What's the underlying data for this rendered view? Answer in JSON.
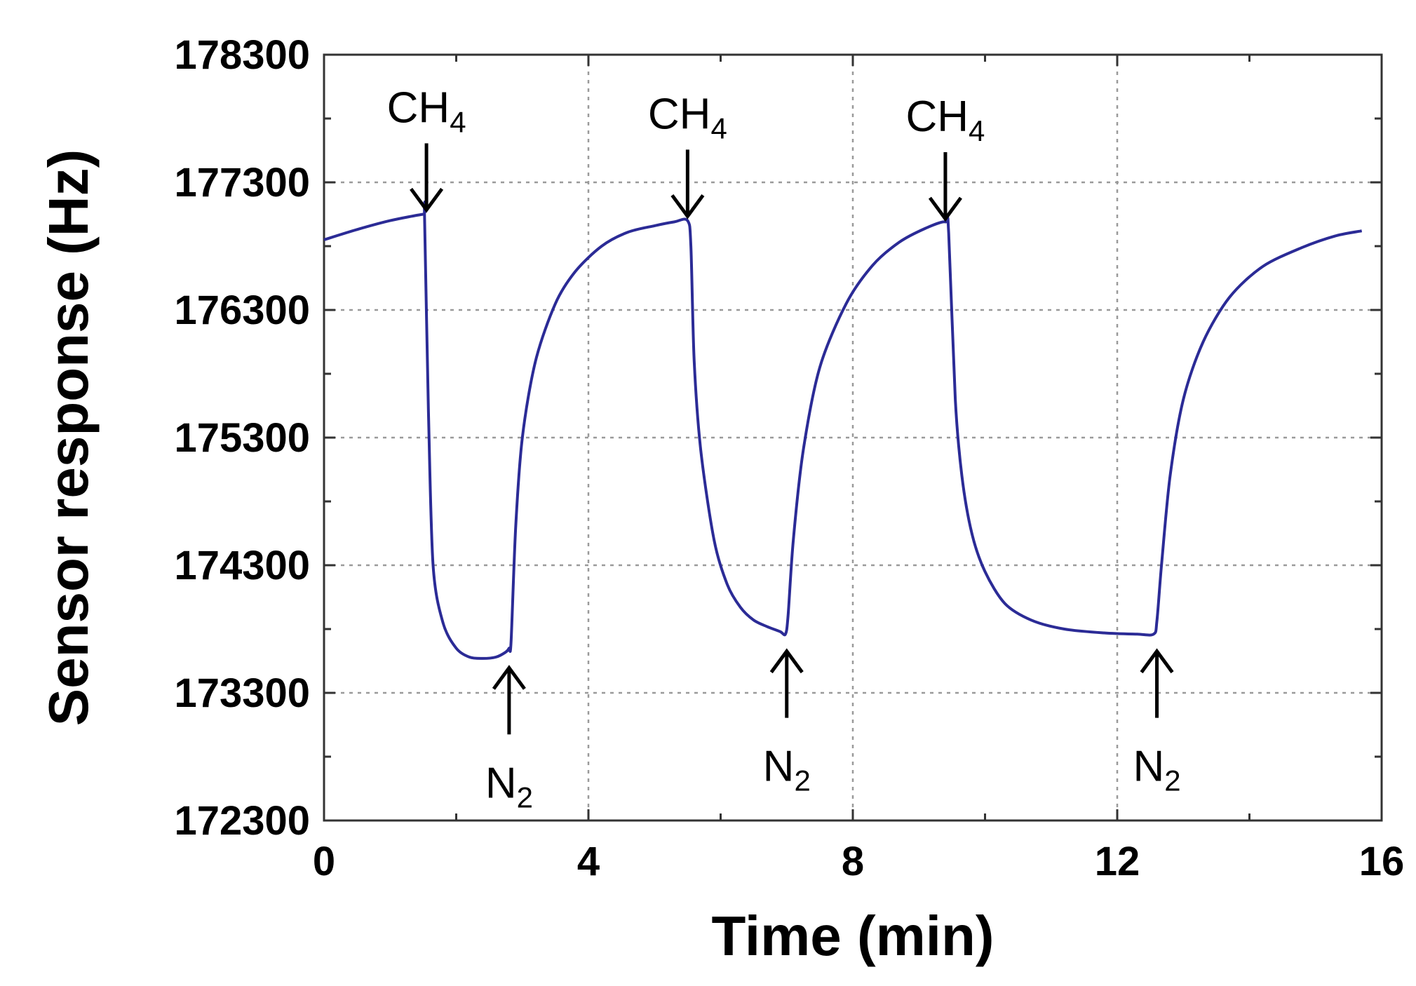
{
  "chart_data": {
    "type": "line",
    "title": "",
    "xlabel": "Time (min)",
    "ylabel": "Sensor response (Hz)",
    "xlim": [
      0,
      16
    ],
    "ylim": [
      172300,
      178300
    ],
    "xticks": [
      0,
      4,
      8,
      12,
      16
    ],
    "xtick_labels": [
      "0",
      "4",
      "8",
      "12",
      "16"
    ],
    "yticks": [
      172300,
      173300,
      174300,
      175300,
      176300,
      177300,
      178300
    ],
    "ytick_labels": [
      "172300",
      "173300",
      "174300",
      "175300",
      "176300",
      "177300",
      "178300"
    ],
    "grid": true,
    "line_color": "#2b2b96",
    "series": [
      {
        "name": "Sensor response",
        "x": [
          0,
          0.5,
          1.0,
          1.5,
          1.52,
          1.58,
          1.65,
          1.8,
          2.0,
          2.2,
          2.4,
          2.6,
          2.75,
          2.8,
          2.83,
          2.9,
          3.0,
          3.2,
          3.5,
          3.8,
          4.2,
          4.6,
          5.0,
          5.3,
          5.5,
          5.55,
          5.6,
          5.7,
          5.9,
          6.1,
          6.3,
          6.5,
          6.7,
          6.9,
          6.98,
          7.02,
          7.1,
          7.25,
          7.5,
          7.9,
          8.3,
          8.7,
          9.1,
          9.4,
          9.45,
          9.55,
          9.65,
          9.8,
          10.0,
          10.3,
          10.7,
          11.2,
          11.8,
          12.3,
          12.55,
          12.6,
          12.67,
          12.8,
          13.0,
          13.3,
          13.7,
          14.2,
          14.8,
          15.3,
          15.7
        ],
        "y": [
          176850,
          176930,
          177000,
          177050,
          177040,
          175500,
          174300,
          173850,
          173650,
          173580,
          173570,
          173580,
          173620,
          173650,
          173700,
          174600,
          175300,
          175900,
          176350,
          176600,
          176800,
          176910,
          176960,
          176990,
          177000,
          176800,
          175900,
          175200,
          174500,
          174150,
          173970,
          173870,
          173820,
          173780,
          173760,
          173900,
          174500,
          175200,
          175850,
          176350,
          176650,
          176830,
          176940,
          176990,
          176900,
          175600,
          175000,
          174550,
          174250,
          174000,
          173870,
          173800,
          173770,
          173760,
          173760,
          173860,
          174300,
          175000,
          175600,
          176050,
          176400,
          176640,
          176790,
          176880,
          176920
        ]
      }
    ],
    "annotations": [
      {
        "label": "CH",
        "sub": "4",
        "x": 1.55,
        "y": 177040,
        "direction": "down"
      },
      {
        "label": "CH",
        "sub": "4",
        "x": 5.5,
        "y": 176990,
        "direction": "down"
      },
      {
        "label": "CH",
        "sub": "4",
        "x": 9.4,
        "y": 176970,
        "direction": "down"
      },
      {
        "label": "N",
        "sub": "2",
        "x": 2.8,
        "y": 173650,
        "direction": "up"
      },
      {
        "label": "N",
        "sub": "2",
        "x": 7.0,
        "y": 173780,
        "direction": "up"
      },
      {
        "label": "N",
        "sub": "2",
        "x": 12.6,
        "y": 173780,
        "direction": "up"
      }
    ]
  }
}
